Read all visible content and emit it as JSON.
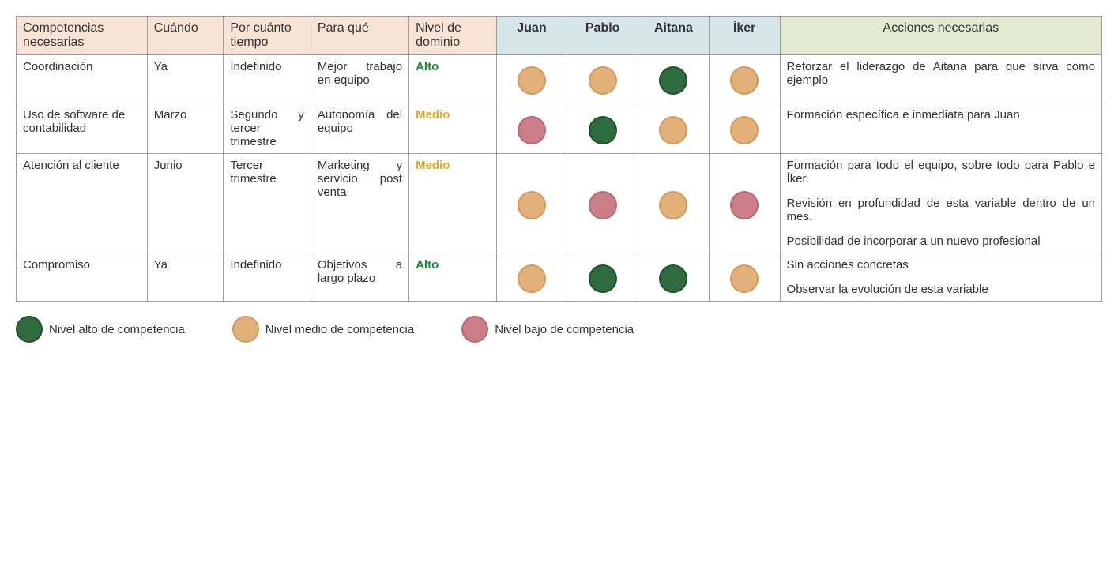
{
  "headers": {
    "competencias": "Competencias necesarias",
    "cuando": "Cuándo",
    "por_cuanto": "Por cuánto tiempo",
    "para_que": "Para qué",
    "nivel": "Nivel de dominio",
    "p1": "Juan",
    "p2": "Pablo",
    "p3": "Aitana",
    "p4": "Íker",
    "acciones": "Acciones necesarias"
  },
  "col_widths_pct": [
    12,
    7,
    8,
    9,
    8,
    6.5,
    6.5,
    6.5,
    6.5,
    29.5
  ],
  "level_styles": {
    "Alto": {
      "class": "level-alto",
      "color": "#1b8a3a"
    },
    "Medio": {
      "class": "level-medio",
      "color": "#e3a822"
    }
  },
  "rating_colors": {
    "high": {
      "bg": "#2e6b3e",
      "border": "#24502f"
    },
    "mid": {
      "bg": "#e2b07a",
      "border": "#d49a5b"
    },
    "low": {
      "bg": "#c97e88",
      "border": "#b96a74"
    }
  },
  "rows": [
    {
      "competencia": "Coordinación",
      "cuando": "Ya",
      "por_cuanto": "Indefinido",
      "para_que": "Mejor trabajo en equipo",
      "nivel": "Alto",
      "ratings": [
        "mid",
        "mid",
        "high",
        "mid"
      ],
      "acciones": [
        "Reforzar el liderazgo de Aitana para que sirva como ejemplo"
      ]
    },
    {
      "competencia": "Uso de software de contabilidad",
      "cuando": "Marzo",
      "por_cuanto": "Segundo y tercer trimestre",
      "para_que": "Autonomía del equipo",
      "nivel": "Medio",
      "ratings": [
        "low",
        "high",
        "mid",
        "mid"
      ],
      "acciones": [
        "Formación específica e inmediata para Juan"
      ]
    },
    {
      "competencia": "Atención al cliente",
      "cuando": "Junio",
      "por_cuanto": "Tercer trimestre",
      "para_que": "Marketing y servicio post venta",
      "nivel": "Medio",
      "ratings": [
        "mid",
        "low",
        "mid",
        "low"
      ],
      "acciones": [
        "Formación para todo el equipo, sobre todo para Pablo e Íker.",
        "Revisión en profundidad de esta variable dentro de un mes.",
        "Posibilidad de incorporar a un nuevo profesional"
      ]
    },
    {
      "competencia": "Compromiso",
      "cuando": "Ya",
      "por_cuanto": "Indefinido",
      "para_que": "Objetivos a largo plazo",
      "nivel": "Alto",
      "ratings": [
        "mid",
        "high",
        "high",
        "mid"
      ],
      "acciones": [
        " Sin acciones concretas",
        "Observar la evolución de esta variable"
      ]
    }
  ],
  "legend": {
    "high": "Nivel alto de competencia",
    "mid": "Nivel medio de competencia",
    "low": "Nivel bajo de competencia"
  }
}
